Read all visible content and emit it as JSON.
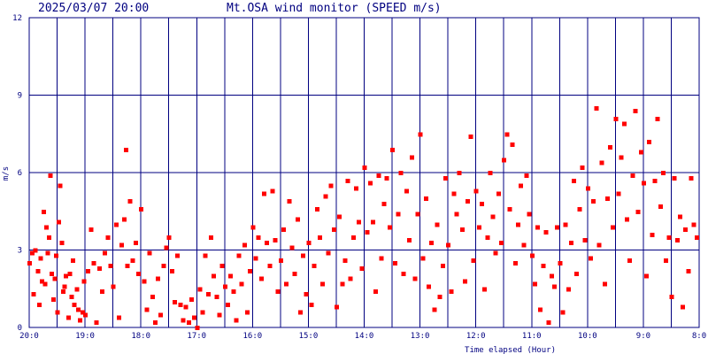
{
  "header": {
    "timestamp": "2025/03/07 20:00",
    "title": "Mt.OSA wind monitor (SPEED m/s)"
  },
  "chart_data": {
    "type": "scatter",
    "title": "Mt.OSA wind monitor (SPEED m/s)",
    "xlabel": "Time elapsed (Hour)",
    "ylabel": "m/s",
    "xlim": [
      0,
      24
    ],
    "ylim": [
      0,
      12
    ],
    "x_direction": "elapsed hours back from 20:00 (left) to 8:00 (right)",
    "x_tick_labels": [
      {
        "label": "20:0",
        "x": 0
      },
      {
        "label": "19:0",
        "x": 2
      },
      {
        "label": "18:0",
        "x": 4
      },
      {
        "label": "17:0",
        "x": 6
      },
      {
        "label": "16:0",
        "x": 8
      },
      {
        "label": "15:0",
        "x": 10
      },
      {
        "label": "14:0",
        "x": 12
      },
      {
        "label": "13:0",
        "x": 14
      },
      {
        "label": "12:0",
        "x": 16
      },
      {
        "label": "11:0",
        "x": 18
      },
      {
        "label": "10:0",
        "x": 20
      },
      {
        "label": "9:0",
        "x": 22
      },
      {
        "label": "8:0",
        "x": 24
      }
    ],
    "y_ticks": [
      0,
      3,
      6,
      9,
      12
    ],
    "x_gridlines_every": 1,
    "y_gridlines": [
      3,
      6,
      9
    ],
    "grid": true,
    "point_color": "#ff0000",
    "grid_color": "#000080",
    "series": [
      {
        "points": [
          [
            0.0,
            2.5
          ],
          [
            0.1,
            2.9
          ],
          [
            0.15,
            1.3
          ],
          [
            0.2,
            3.0
          ],
          [
            0.3,
            2.2
          ],
          [
            0.35,
            0.9
          ],
          [
            0.4,
            2.7
          ],
          [
            0.45,
            1.8
          ],
          [
            0.5,
            4.5
          ],
          [
            0.55,
            1.7
          ],
          [
            0.6,
            3.9
          ],
          [
            0.65,
            2.9
          ],
          [
            0.7,
            3.5
          ],
          [
            0.75,
            5.9
          ],
          [
            0.8,
            2.1
          ],
          [
            0.85,
            1.1
          ],
          [
            0.9,
            1.9
          ],
          [
            0.95,
            2.8
          ],
          [
            1.0,
            0.6
          ],
          [
            1.05,
            4.1
          ],
          [
            1.1,
            5.5
          ],
          [
            1.15,
            3.3
          ],
          [
            1.2,
            1.4
          ],
          [
            1.25,
            1.6
          ],
          [
            1.3,
            2.0
          ],
          [
            1.4,
            0.4
          ],
          [
            1.45,
            2.1
          ],
          [
            1.5,
            1.2
          ],
          [
            1.55,
            2.6
          ],
          [
            1.6,
            0.9
          ],
          [
            1.7,
            1.5
          ],
          [
            1.75,
            0.7
          ],
          [
            1.8,
            0.3
          ],
          [
            1.9,
            0.6
          ],
          [
            1.95,
            1.8
          ],
          [
            2.0,
            0.5
          ],
          [
            2.1,
            2.2
          ],
          [
            2.2,
            3.8
          ],
          [
            2.3,
            2.5
          ],
          [
            2.4,
            0.2
          ],
          [
            2.5,
            2.3
          ],
          [
            2.6,
            1.4
          ],
          [
            2.7,
            2.9
          ],
          [
            2.8,
            3.5
          ],
          [
            2.9,
            2.4
          ],
          [
            3.0,
            1.6
          ],
          [
            3.1,
            4.0
          ],
          [
            3.2,
            0.4
          ],
          [
            3.3,
            3.2
          ],
          [
            3.4,
            4.2
          ],
          [
            3.45,
            6.9
          ],
          [
            3.5,
            2.4
          ],
          [
            3.6,
            4.9
          ],
          [
            3.7,
            2.6
          ],
          [
            3.8,
            3.3
          ],
          [
            3.9,
            2.1
          ],
          [
            4.0,
            4.6
          ],
          [
            4.1,
            1.8
          ],
          [
            4.2,
            0.7
          ],
          [
            4.3,
            2.9
          ],
          [
            4.4,
            1.2
          ],
          [
            4.5,
            0.2
          ],
          [
            4.6,
            1.9
          ],
          [
            4.7,
            0.5
          ],
          [
            4.8,
            2.4
          ],
          [
            4.9,
            3.1
          ],
          [
            5.0,
            3.5
          ],
          [
            5.1,
            2.2
          ],
          [
            5.2,
            1.0
          ],
          [
            5.3,
            2.8
          ],
          [
            5.4,
            0.9
          ],
          [
            5.5,
            0.3
          ],
          [
            5.6,
            0.8
          ],
          [
            5.7,
            0.2
          ],
          [
            5.8,
            1.1
          ],
          [
            5.9,
            0.4
          ],
          [
            6.0,
            0.0
          ],
          [
            6.1,
            1.5
          ],
          [
            6.2,
            0.6
          ],
          [
            6.3,
            2.8
          ],
          [
            6.4,
            1.3
          ],
          [
            6.5,
            3.5
          ],
          [
            6.6,
            2.0
          ],
          [
            6.7,
            1.2
          ],
          [
            6.8,
            0.5
          ],
          [
            6.9,
            2.4
          ],
          [
            7.0,
            1.6
          ],
          [
            7.1,
            0.9
          ],
          [
            7.2,
            2.0
          ],
          [
            7.3,
            1.4
          ],
          [
            7.4,
            0.3
          ],
          [
            7.5,
            2.8
          ],
          [
            7.6,
            1.7
          ],
          [
            7.7,
            3.2
          ],
          [
            7.8,
            0.6
          ],
          [
            7.9,
            2.2
          ],
          [
            8.0,
            3.9
          ],
          [
            8.1,
            2.7
          ],
          [
            8.2,
            3.5
          ],
          [
            8.3,
            1.9
          ],
          [
            8.4,
            5.2
          ],
          [
            8.5,
            3.3
          ],
          [
            8.6,
            2.4
          ],
          [
            8.7,
            5.3
          ],
          [
            8.8,
            3.4
          ],
          [
            8.9,
            1.4
          ],
          [
            9.0,
            2.6
          ],
          [
            9.1,
            3.8
          ],
          [
            9.2,
            1.7
          ],
          [
            9.3,
            4.9
          ],
          [
            9.4,
            3.1
          ],
          [
            9.5,
            2.1
          ],
          [
            9.6,
            4.2
          ],
          [
            9.7,
            0.6
          ],
          [
            9.8,
            2.8
          ],
          [
            9.9,
            1.3
          ],
          [
            10.0,
            3.3
          ],
          [
            10.1,
            0.9
          ],
          [
            10.2,
            2.4
          ],
          [
            10.3,
            4.6
          ],
          [
            10.4,
            3.5
          ],
          [
            10.5,
            1.7
          ],
          [
            10.6,
            5.1
          ],
          [
            10.7,
            2.9
          ],
          [
            10.8,
            5.5
          ],
          [
            10.9,
            3.8
          ],
          [
            11.0,
            0.8
          ],
          [
            11.1,
            4.3
          ],
          [
            11.2,
            1.7
          ],
          [
            11.3,
            2.6
          ],
          [
            11.4,
            5.7
          ],
          [
            11.5,
            1.9
          ],
          [
            11.6,
            3.5
          ],
          [
            11.7,
            5.4
          ],
          [
            11.8,
            4.1
          ],
          [
            11.9,
            2.3
          ],
          [
            12.0,
            6.2
          ],
          [
            12.1,
            3.7
          ],
          [
            12.2,
            5.6
          ],
          [
            12.3,
            4.1
          ],
          [
            12.4,
            1.4
          ],
          [
            12.5,
            5.9
          ],
          [
            12.6,
            2.7
          ],
          [
            12.7,
            4.8
          ],
          [
            12.8,
            5.8
          ],
          [
            12.9,
            3.9
          ],
          [
            13.0,
            6.9
          ],
          [
            13.1,
            2.5
          ],
          [
            13.2,
            4.4
          ],
          [
            13.3,
            6.0
          ],
          [
            13.4,
            2.1
          ],
          [
            13.5,
            5.3
          ],
          [
            13.6,
            3.4
          ],
          [
            13.7,
            6.6
          ],
          [
            13.8,
            1.9
          ],
          [
            13.9,
            4.4
          ],
          [
            14.0,
            7.5
          ],
          [
            14.1,
            2.7
          ],
          [
            14.2,
            5.0
          ],
          [
            14.3,
            1.6
          ],
          [
            14.4,
            3.3
          ],
          [
            14.5,
            0.7
          ],
          [
            14.6,
            4.0
          ],
          [
            14.7,
            1.2
          ],
          [
            14.8,
            2.4
          ],
          [
            14.9,
            5.8
          ],
          [
            15.0,
            3.2
          ],
          [
            15.1,
            1.4
          ],
          [
            15.2,
            5.2
          ],
          [
            15.3,
            4.4
          ],
          [
            15.4,
            6.0
          ],
          [
            15.5,
            3.8
          ],
          [
            15.6,
            1.8
          ],
          [
            15.7,
            4.9
          ],
          [
            15.8,
            7.4
          ],
          [
            15.9,
            2.6
          ],
          [
            16.0,
            5.3
          ],
          [
            16.1,
            3.9
          ],
          [
            16.2,
            4.8
          ],
          [
            16.3,
            1.5
          ],
          [
            16.4,
            3.5
          ],
          [
            16.5,
            6.0
          ],
          [
            16.6,
            4.3
          ],
          [
            16.7,
            2.9
          ],
          [
            16.8,
            5.2
          ],
          [
            16.9,
            3.3
          ],
          [
            17.0,
            6.5
          ],
          [
            17.1,
            7.5
          ],
          [
            17.2,
            4.6
          ],
          [
            17.3,
            7.1
          ],
          [
            17.4,
            2.5
          ],
          [
            17.5,
            4.0
          ],
          [
            17.6,
            5.5
          ],
          [
            17.7,
            3.2
          ],
          [
            17.8,
            5.9
          ],
          [
            17.9,
            4.4
          ],
          [
            18.0,
            2.8
          ],
          [
            18.1,
            1.7
          ],
          [
            18.2,
            3.9
          ],
          [
            18.3,
            0.7
          ],
          [
            18.4,
            2.4
          ],
          [
            18.5,
            3.7
          ],
          [
            18.6,
            0.2
          ],
          [
            18.7,
            2.0
          ],
          [
            18.8,
            1.6
          ],
          [
            18.9,
            3.9
          ],
          [
            19.0,
            2.5
          ],
          [
            19.1,
            0.6
          ],
          [
            19.2,
            4.0
          ],
          [
            19.3,
            1.5
          ],
          [
            19.4,
            3.3
          ],
          [
            19.5,
            5.7
          ],
          [
            19.6,
            2.1
          ],
          [
            19.7,
            4.6
          ],
          [
            19.8,
            6.2
          ],
          [
            19.9,
            3.4
          ],
          [
            20.0,
            5.4
          ],
          [
            20.1,
            2.7
          ],
          [
            20.2,
            4.9
          ],
          [
            20.3,
            8.5
          ],
          [
            20.4,
            3.2
          ],
          [
            20.5,
            6.4
          ],
          [
            20.6,
            1.7
          ],
          [
            20.7,
            5.0
          ],
          [
            20.8,
            7.0
          ],
          [
            20.9,
            3.9
          ],
          [
            21.0,
            8.1
          ],
          [
            21.1,
            5.2
          ],
          [
            21.2,
            6.6
          ],
          [
            21.3,
            7.9
          ],
          [
            21.4,
            4.2
          ],
          [
            21.5,
            2.6
          ],
          [
            21.6,
            5.9
          ],
          [
            21.7,
            8.4
          ],
          [
            21.8,
            4.5
          ],
          [
            21.9,
            6.8
          ],
          [
            22.0,
            5.6
          ],
          [
            22.1,
            2.0
          ],
          [
            22.2,
            7.2
          ],
          [
            22.3,
            3.6
          ],
          [
            22.4,
            5.7
          ],
          [
            22.5,
            8.1
          ],
          [
            22.6,
            4.7
          ],
          [
            22.7,
            6.0
          ],
          [
            22.8,
            2.6
          ],
          [
            22.9,
            3.5
          ],
          [
            23.0,
            1.2
          ],
          [
            23.1,
            5.8
          ],
          [
            23.2,
            3.4
          ],
          [
            23.3,
            4.3
          ],
          [
            23.4,
            0.8
          ],
          [
            23.5,
            3.8
          ],
          [
            23.6,
            2.2
          ],
          [
            23.7,
            5.8
          ],
          [
            23.8,
            4.0
          ],
          [
            23.9,
            3.5
          ]
        ]
      }
    ]
  }
}
